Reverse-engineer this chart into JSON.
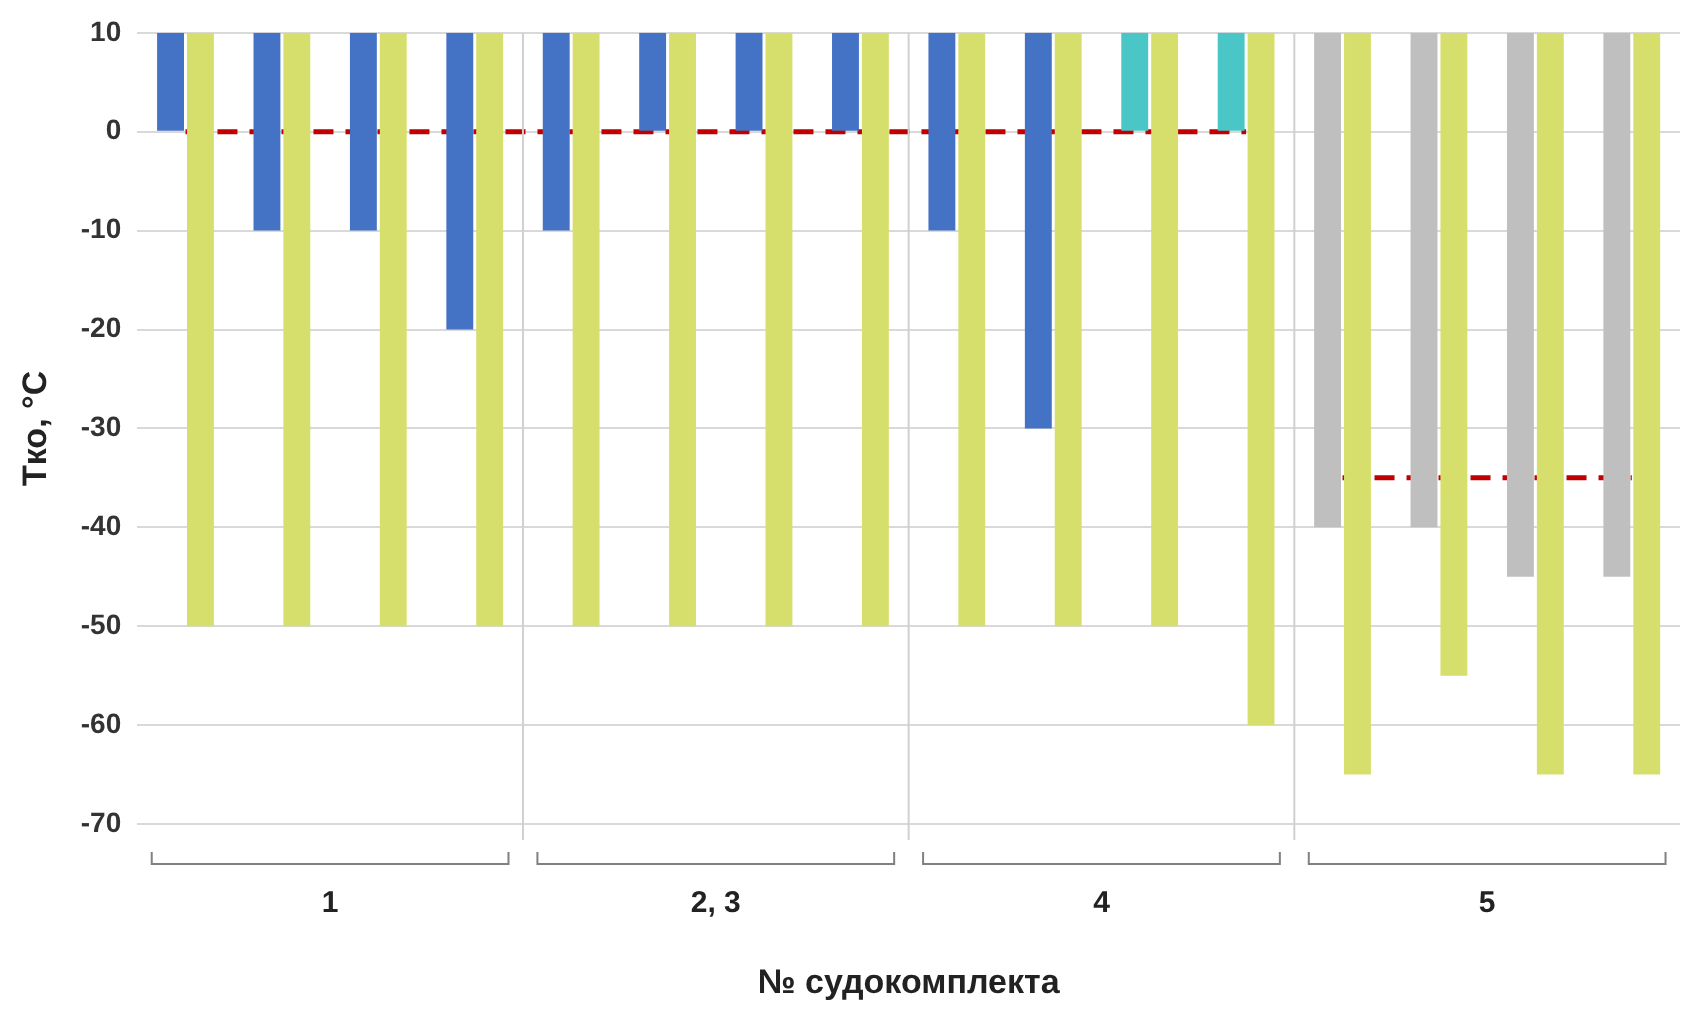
{
  "chart_data": {
    "type": "bar",
    "xlabel": "№ судокомплекта",
    "ylabel": "Tко, °C",
    "categories": [
      null,
      null,
      null,
      null,
      null,
      null,
      null,
      null,
      null,
      null,
      null,
      null,
      null,
      null,
      null,
      null
    ],
    "series": [
      {
        "base": [
          10,
          10,
          10,
          10,
          10,
          10,
          10,
          10,
          10,
          10,
          10,
          10,
          10,
          10,
          10,
          10
        ],
        "colors": [
          "#4472c4",
          "#4472c4",
          "#4472c4",
          "#4472c4",
          "#4472c4",
          "#4472c4",
          "#4472c4",
          "#4472c4",
          "#4472c4",
          "#4472c4",
          "#4bc6c6",
          "#4bc6c6",
          "#bfbfbf",
          "#bfbfbf",
          "#bfbfbf",
          "#bfbfbf"
        ],
        "values": [
          -10,
          -20,
          -20,
          -30,
          -20,
          -10,
          -10,
          -10,
          -20,
          -40,
          -10,
          -10,
          -50,
          -50,
          -55,
          -55
        ]
      },
      {
        "base": [
          10,
          10,
          10,
          10,
          10,
          10,
          10,
          10,
          10,
          10,
          10,
          10,
          10,
          10,
          10,
          10
        ],
        "color": "#d7df6c",
        "values": [
          -60,
          -60,
          -60,
          -60,
          -60,
          -60,
          -60,
          -60,
          -60,
          -60,
          -60,
          -70,
          -75,
          -65,
          -75,
          -75
        ]
      },
      {
        "type": "line",
        "color": "#c00000",
        "line_style": "dashed",
        "marker": "none",
        "values": [
          0,
          0,
          0,
          0,
          0,
          0,
          0,
          0,
          0,
          0,
          0,
          0,
          null,
          null,
          null,
          null
        ]
      },
      {
        "type": "line",
        "color": "#c00000",
        "line_style": "dashed",
        "marker": "none",
        "values": [
          null,
          null,
          null,
          null,
          null,
          null,
          null,
          null,
          null,
          null,
          null,
          null,
          -35,
          -35,
          -35,
          -35
        ]
      }
    ],
    "ylim": [
      -70,
      10
    ],
    "yticks": [
      -70,
      -60,
      -50,
      -40,
      -30,
      -20,
      -10,
      0,
      10
    ],
    "grid": "y",
    "annotations": [
      "1",
      "2, 3",
      "4",
      "5"
    ],
    "legend": false
  }
}
